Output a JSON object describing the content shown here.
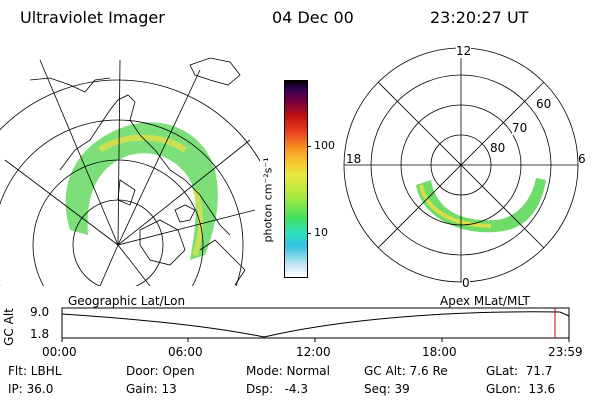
{
  "header": {
    "title": "Ultraviolet Imager",
    "date": "04 Dec 00",
    "time": "23:20:27 UT"
  },
  "colorbar": {
    "label": "photon cm⁻²s⁻¹",
    "ticks": [
      "100",
      "10"
    ]
  },
  "polar": {
    "mlt_labels": [
      "12",
      "18",
      "6",
      "0"
    ],
    "lat_labels": [
      "60",
      "70",
      "80"
    ]
  },
  "panel_labels": {
    "geo": "Geographic Lat/Lon",
    "apex": "Apex MLat/MLT"
  },
  "altitude_plot": {
    "axis_label": "GC Alt",
    "y_ticks": [
      "9.0",
      "1.8"
    ],
    "x_ticks": [
      "00:00",
      "06:00",
      "12:00",
      "18:00",
      "23:59"
    ]
  },
  "status": {
    "flt": "Flt: LBHL",
    "ip": "IP: 36.0",
    "door": "Door: Open",
    "gain": "Gain: 13",
    "mode": "Mode: Normal",
    "dsp": "Dsp:   -4.3",
    "gcalt": "GC Alt: 7.6 Re",
    "seq": "Seq: 39",
    "glat": "GLat:  71.7",
    "glon": "GLon:  13.6"
  }
}
